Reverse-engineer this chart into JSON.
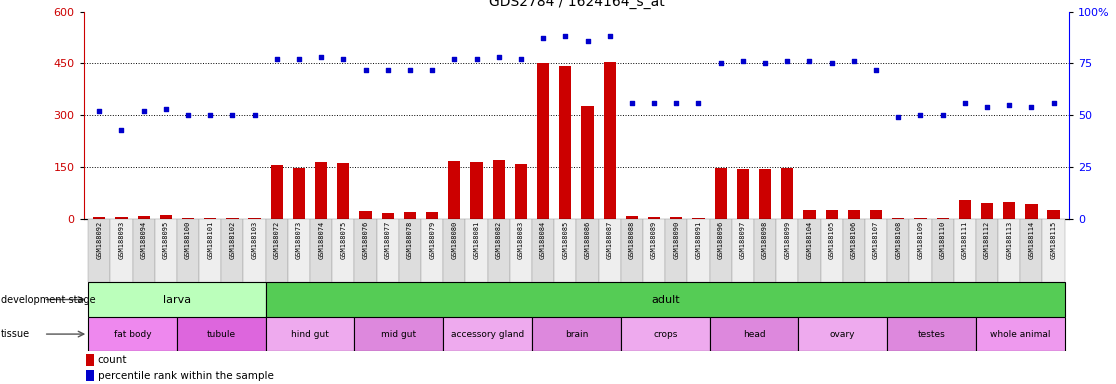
{
  "title": "GDS2784 / 1624164_s_at",
  "samples": [
    "GSM188092",
    "GSM188093",
    "GSM188094",
    "GSM188095",
    "GSM188100",
    "GSM188101",
    "GSM188102",
    "GSM188103",
    "GSM188072",
    "GSM188073",
    "GSM188074",
    "GSM188075",
    "GSM188076",
    "GSM188077",
    "GSM188078",
    "GSM188079",
    "GSM188080",
    "GSM188081",
    "GSM188082",
    "GSM188083",
    "GSM188084",
    "GSM188085",
    "GSM188086",
    "GSM188087",
    "GSM188088",
    "GSM188089",
    "GSM188090",
    "GSM188091",
    "GSM188096",
    "GSM188097",
    "GSM188098",
    "GSM188099",
    "GSM188104",
    "GSM188105",
    "GSM188106",
    "GSM188107",
    "GSM188108",
    "GSM188109",
    "GSM188110",
    "GSM188111",
    "GSM188112",
    "GSM188113",
    "GSM188114",
    "GSM188115"
  ],
  "count": [
    5,
    5,
    8,
    10,
    3,
    3,
    3,
    3,
    155,
    148,
    165,
    162,
    22,
    18,
    20,
    20,
    168,
    165,
    170,
    158,
    450,
    443,
    328,
    453,
    8,
    5,
    5,
    3,
    148,
    145,
    143,
    148,
    27,
    26,
    25,
    25,
    3,
    3,
    3,
    55,
    45,
    48,
    42,
    25
  ],
  "percentile": [
    52,
    43,
    52,
    53,
    50,
    50,
    50,
    50,
    77,
    77,
    78,
    77,
    72,
    72,
    72,
    72,
    77,
    77,
    78,
    77,
    87,
    88,
    86,
    88,
    56,
    56,
    56,
    56,
    75,
    76,
    75,
    76,
    76,
    75,
    76,
    72,
    49,
    50,
    50,
    56,
    54,
    55,
    54,
    56
  ],
  "development_stages": [
    {
      "label": "larva",
      "start": 0,
      "end": 8,
      "color": "#bbffbb"
    },
    {
      "label": "adult",
      "start": 8,
      "end": 44,
      "color": "#55cc55"
    }
  ],
  "tissues": [
    {
      "label": "fat body",
      "start": 0,
      "end": 4,
      "color": "#ee88ee"
    },
    {
      "label": "tubule",
      "start": 4,
      "end": 8,
      "color": "#dd66dd"
    },
    {
      "label": "hind gut",
      "start": 8,
      "end": 12,
      "color": "#eeaaee"
    },
    {
      "label": "mid gut",
      "start": 12,
      "end": 16,
      "color": "#dd88dd"
    },
    {
      "label": "accessory gland",
      "start": 16,
      "end": 20,
      "color": "#eeaaee"
    },
    {
      "label": "brain",
      "start": 20,
      "end": 24,
      "color": "#dd88dd"
    },
    {
      "label": "crops",
      "start": 24,
      "end": 28,
      "color": "#eeaaee"
    },
    {
      "label": "head",
      "start": 28,
      "end": 32,
      "color": "#dd88dd"
    },
    {
      "label": "ovary",
      "start": 32,
      "end": 36,
      "color": "#eeaaee"
    },
    {
      "label": "testes",
      "start": 36,
      "end": 40,
      "color": "#dd88dd"
    },
    {
      "label": "whole animal",
      "start": 40,
      "end": 44,
      "color": "#ee99ee"
    }
  ],
  "bar_color": "#cc0000",
  "scatter_color": "#0000cc",
  "left_ylim": [
    0,
    600
  ],
  "right_ylim": [
    0,
    100
  ],
  "left_yticks": [
    0,
    150,
    300,
    450,
    600
  ],
  "right_yticks": [
    0,
    25,
    50,
    75,
    100
  ],
  "title_fontsize": 10,
  "label_row_colors": [
    "#dddddd",
    "#eeeeee"
  ]
}
